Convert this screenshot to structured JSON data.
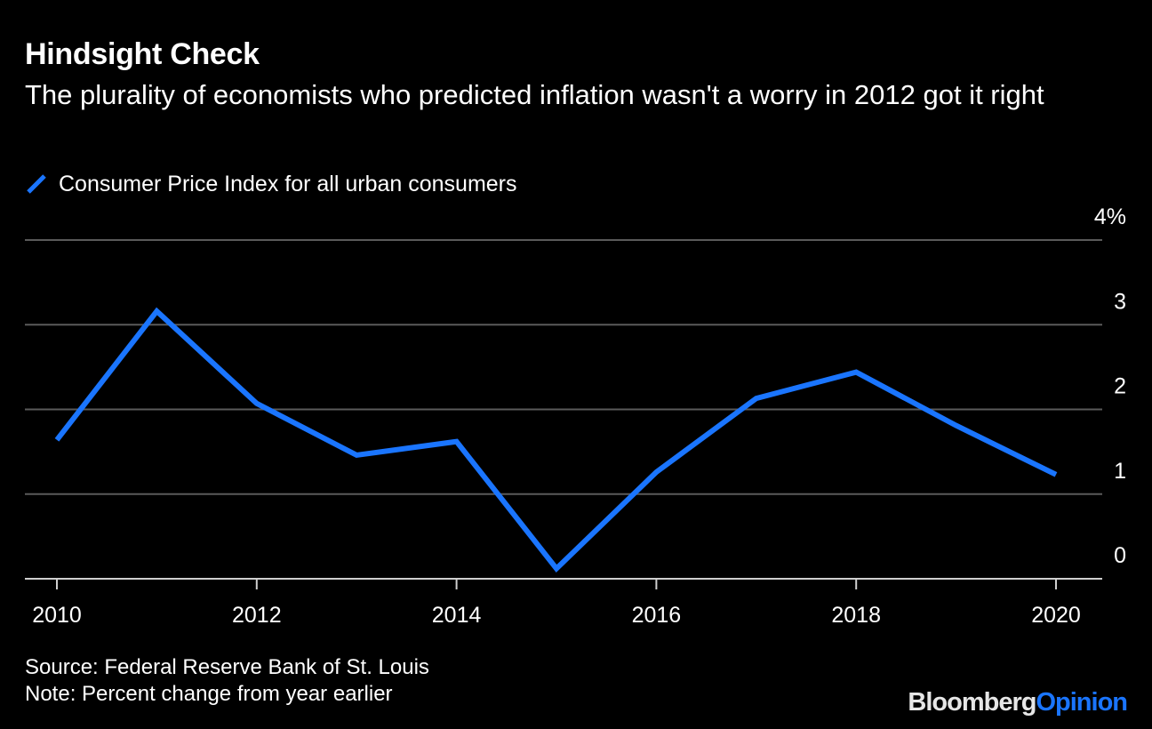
{
  "header": {
    "title": "Hindsight Check",
    "subtitle": "The plurality of economists who predicted inflation wasn't a worry in 2012 got it right"
  },
  "colors": {
    "background": "#000000",
    "series": "#1a75ff",
    "gridline": "#5a5a5a",
    "text": "#ffffff"
  },
  "chart_data": {
    "type": "line",
    "title": "Hindsight Check",
    "subtitle": "The plurality of economists who predicted inflation wasn't a worry in 2012 got it right",
    "xlabel": "",
    "ylabel": "",
    "x": [
      2010,
      2011,
      2012,
      2013,
      2014,
      2015,
      2016,
      2017,
      2018,
      2019,
      2020
    ],
    "series": [
      {
        "name": "Consumer Price Index for all urban consumers",
        "values": [
          1.64,
          3.16,
          2.07,
          1.46,
          1.62,
          0.12,
          1.26,
          2.13,
          2.44,
          1.81,
          1.23
        ]
      }
    ],
    "xlim": [
      2009.7,
      2020.45
    ],
    "ylim": [
      0,
      4
    ],
    "x_ticks": [
      2010,
      2012,
      2014,
      2016,
      2018,
      2020
    ],
    "x_tick_labels": [
      "2010",
      "2012",
      "2014",
      "2016",
      "2018",
      "2020"
    ],
    "y_ticks": [
      0,
      1,
      2,
      3,
      4
    ],
    "y_tick_labels": [
      "0",
      "1",
      "2",
      "3",
      "4%"
    ],
    "grid": true,
    "y_axis_side": "right",
    "legend_position": "top-left"
  },
  "footer": {
    "source": "Source: Federal Reserve Bank of St. Louis",
    "note": "Note: Percent change from year earlier",
    "brand_a": "Bloomberg",
    "brand_b": "Opinion"
  }
}
